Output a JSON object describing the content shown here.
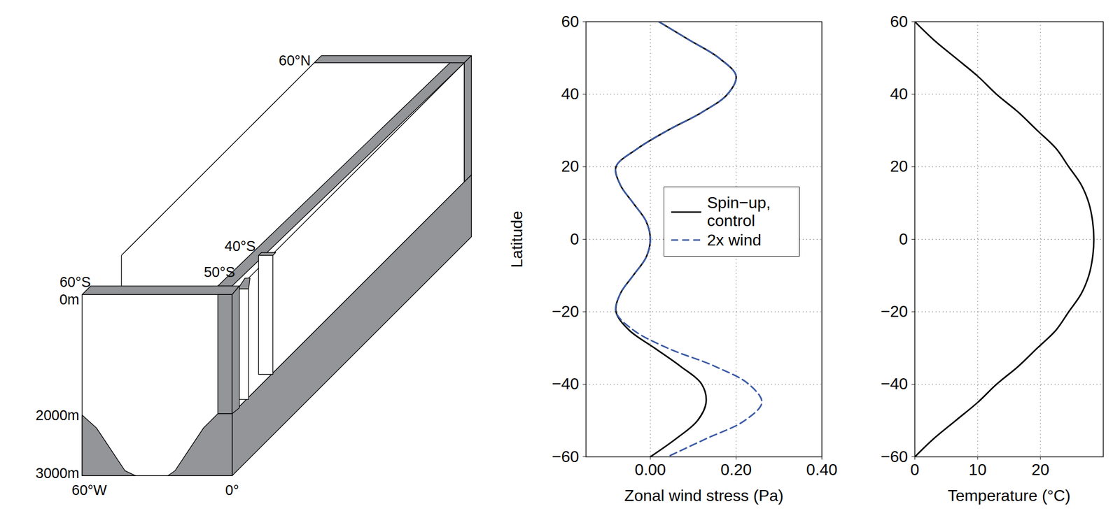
{
  "chart_data": [
    {
      "type": "line",
      "xlabel": "Zonal wind stress (Pa)",
      "ylabel": "Latitude",
      "xlim": [
        -0.15,
        0.4
      ],
      "xticks": [
        0,
        0.2,
        0.4
      ],
      "ylim": [
        -60,
        60
      ],
      "yticks": [
        -60,
        -40,
        -20,
        0,
        20,
        40,
        60
      ],
      "grid": true,
      "legend": "right",
      "y": [
        60,
        55,
        50,
        45,
        40,
        35,
        30,
        25,
        20,
        15,
        10,
        5,
        0,
        -5,
        -10,
        -15,
        -20,
        -25,
        -30,
        -35,
        -40,
        -45,
        -50,
        -55,
        -60
      ],
      "series": [
        {
          "name": "Spin−up, control",
          "color": "#000000",
          "line_style": "solid",
          "values": [
            0.02,
            0.09,
            0.16,
            0.2,
            0.18,
            0.12,
            0.04,
            -0.03,
            -0.08,
            -0.07,
            -0.04,
            -0.01,
            0,
            -0.01,
            -0.04,
            -0.07,
            -0.08,
            -0.05,
            0.01,
            0.07,
            0.12,
            0.13,
            0.11,
            0.06,
            0
          ]
        },
        {
          "name": "2x wind",
          "color": "#3b5ba5",
          "line_style": "dashed",
          "values": [
            0.02,
            0.09,
            0.16,
            0.2,
            0.18,
            0.12,
            0.04,
            -0.03,
            -0.08,
            -0.07,
            -0.04,
            -0.01,
            0,
            -0.01,
            -0.04,
            -0.07,
            -0.08,
            -0.04,
            0.04,
            0.15,
            0.23,
            0.26,
            0.22,
            0.13,
            0.04
          ]
        }
      ]
    },
    {
      "type": "line",
      "xlabel": "Temperature (°C)",
      "xlim": [
        0,
        30
      ],
      "xticks": [
        0,
        10,
        20
      ],
      "ylim": [
        -60,
        60
      ],
      "yticks": [
        -60,
        -40,
        -20,
        0,
        20,
        40,
        60
      ],
      "grid": true,
      "y": [
        60,
        55,
        50,
        45,
        40,
        35,
        30,
        25,
        20,
        15,
        10,
        5,
        0,
        -5,
        -10,
        -15,
        -20,
        -25,
        -30,
        -35,
        -40,
        -45,
        -50,
        -55,
        -60
      ],
      "series": [
        {
          "color": "#000000",
          "line_style": "solid",
          "values": [
            0,
            3,
            6.5,
            10,
            13,
            16.5,
            19.5,
            22.5,
            24.5,
            26.5,
            27.7,
            28.3,
            28.5,
            28.3,
            27.7,
            26.5,
            24.5,
            22.5,
            19.5,
            16.5,
            13,
            10,
            6.5,
            3,
            0
          ]
        }
      ]
    }
  ],
  "diagram": {
    "labels": {
      "north": "60°N",
      "tip40": "40°S",
      "tip50": "50°S",
      "south": "60°S",
      "depth0": "0m",
      "depth2000": "2000m",
      "depth3000": "3000m",
      "west": "60°W",
      "east": "0°"
    }
  }
}
